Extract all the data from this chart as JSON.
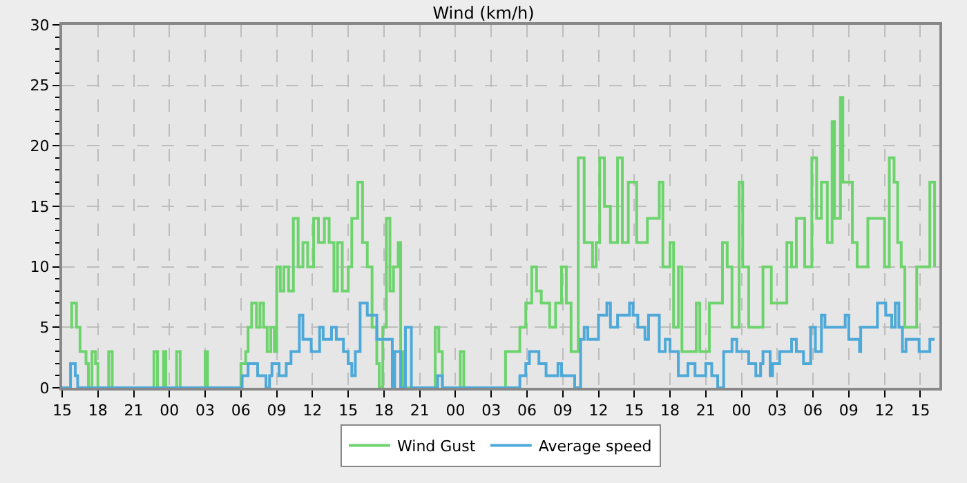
{
  "chart_data": {
    "type": "step",
    "title": "Wind (km/h)",
    "xlim": [
      15,
      88.6
    ],
    "ylim": [
      0,
      30
    ],
    "yticks": [
      0,
      5,
      10,
      15,
      20,
      25,
      30
    ],
    "xticks": [
      {
        "value": 15,
        "label": "15"
      },
      {
        "value": 18,
        "label": "18"
      },
      {
        "value": 21,
        "label": "21"
      },
      {
        "value": 24,
        "label": "00"
      },
      {
        "value": 27,
        "label": "03"
      },
      {
        "value": 30,
        "label": "06"
      },
      {
        "value": 33,
        "label": "09"
      },
      {
        "value": 36,
        "label": "12"
      },
      {
        "value": 39,
        "label": "15"
      },
      {
        "value": 42,
        "label": "18"
      },
      {
        "value": 45,
        "label": "21"
      },
      {
        "value": 48,
        "label": "00"
      },
      {
        "value": 51,
        "label": "03"
      },
      {
        "value": 54,
        "label": "06"
      },
      {
        "value": 57,
        "label": "09"
      },
      {
        "value": 60,
        "label": "12"
      },
      {
        "value": 63,
        "label": "15"
      },
      {
        "value": 66,
        "label": "18"
      },
      {
        "value": 69,
        "label": "21"
      },
      {
        "value": 72,
        "label": "00"
      },
      {
        "value": 75,
        "label": "03"
      },
      {
        "value": 78,
        "label": "06"
      },
      {
        "value": 81,
        "label": "09"
      },
      {
        "value": 84,
        "label": "12"
      },
      {
        "value": 87,
        "label": "15"
      }
    ],
    "grid": true,
    "legend": "bottom",
    "series": [
      {
        "name": "Wind Gust",
        "color": "#6dd46d",
        "x": [
          15.7,
          15.8,
          16.2,
          16.5,
          17.0,
          17.2,
          17.5,
          17.8,
          18.0,
          18.9,
          19.2,
          22.7,
          23.0,
          23.5,
          23.7,
          24.6,
          24.9,
          27.0,
          27.2,
          30.0,
          30.4,
          30.6,
          30.9,
          31.3,
          31.6,
          31.9,
          32.2,
          32.5,
          32.8,
          33.0,
          33.3,
          33.6,
          34.0,
          34.4,
          34.8,
          35.2,
          35.6,
          36.1,
          36.5,
          37.0,
          37.4,
          37.8,
          38.1,
          38.5,
          39.0,
          39.3,
          39.8,
          40.2,
          40.6,
          41.0,
          41.4,
          41.6,
          41.9,
          42.2,
          42.5,
          42.8,
          43.2,
          43.4,
          43.6,
          46.3,
          46.6,
          46.9,
          48.4,
          48.7,
          52.2,
          53.4,
          53.9,
          54.4,
          54.8,
          55.2,
          55.9,
          56.4,
          56.9,
          57.3,
          57.7,
          58.3,
          58.8,
          59.5,
          59.8,
          60.1,
          60.5,
          61.0,
          61.6,
          62.0,
          62.5,
          63.2,
          64.1,
          65.1,
          65.4,
          66.0,
          66.3,
          66.7,
          67.0,
          68.2,
          68.5,
          69.3,
          70.4,
          70.8,
          71.2,
          71.8,
          72.1,
          72.6,
          73.8,
          74.5,
          75.8,
          76.2,
          76.6,
          77.3,
          77.9,
          78.3,
          78.7,
          79.2,
          79.6,
          79.8,
          80.3,
          80.5,
          81.3,
          81.7,
          82.6,
          84.0,
          84.4,
          84.8,
          85.1,
          85.4,
          85.7,
          86.7,
          87.8,
          88.2
        ],
        "values": [
          5,
          7,
          5,
          3,
          2,
          0,
          3,
          2,
          0,
          3,
          0,
          3,
          0,
          3,
          0,
          3,
          0,
          3,
          0,
          2,
          3,
          5,
          7,
          5,
          7,
          5,
          3,
          5,
          3,
          10,
          8,
          10,
          8,
          14,
          10,
          12,
          10,
          14,
          12,
          14,
          12,
          8,
          12,
          8,
          10,
          14,
          17,
          12,
          10,
          5,
          2,
          0,
          5,
          14,
          8,
          10,
          12,
          3,
          0,
          5,
          3,
          0,
          3,
          0,
          3,
          5,
          7,
          10,
          8,
          7,
          5,
          7,
          10,
          7,
          3,
          19,
          12,
          10,
          12,
          19,
          15,
          12,
          19,
          12,
          17,
          12,
          14,
          17,
          10,
          12,
          5,
          10,
          3,
          7,
          3,
          7,
          12,
          10,
          5,
          17,
          10,
          5,
          10,
          7,
          12,
          10,
          14,
          10,
          19,
          14,
          17,
          12,
          22,
          14,
          24,
          17,
          12,
          10,
          14,
          10,
          19,
          17,
          12,
          10,
          5,
          10,
          17,
          10
        ]
      },
      {
        "name": "Average speed",
        "color": "#4ea9d9",
        "x": [
          15.0,
          15.7,
          16.1,
          16.3,
          30.1,
          30.6,
          31.4,
          32.1,
          32.4,
          32.6,
          33.2,
          33.8,
          34.2,
          34.9,
          35.2,
          35.9,
          36.6,
          36.9,
          37.6,
          38.0,
          38.6,
          39.0,
          39.3,
          39.6,
          40.0,
          40.6,
          41.4,
          42.7,
          42.9,
          43.4,
          43.8,
          44.3,
          46.5,
          46.9,
          53.4,
          53.9,
          54.2,
          55.0,
          55.6,
          56.6,
          56.9,
          58.0,
          58.5,
          58.8,
          59.1,
          60.0,
          60.7,
          61.0,
          61.6,
          62.6,
          62.9,
          63.3,
          63.9,
          64.2,
          65.1,
          65.6,
          66.0,
          66.7,
          67.5,
          68.1,
          69.0,
          69.5,
          70.0,
          70.5,
          71.2,
          71.6,
          72.6,
          73.2,
          73.6,
          73.8,
          74.4,
          74.6,
          75.2,
          76.2,
          76.6,
          77.2,
          77.8,
          78.2,
          78.7,
          79.0,
          80.7,
          81.0,
          81.9,
          82.0,
          83.4,
          84.1,
          84.6,
          84.9,
          85.2,
          85.5,
          85.8,
          86.9,
          87.8,
          88.2
        ],
        "values": [
          0,
          2,
          1,
          0,
          1,
          2,
          1,
          0,
          1,
          2,
          1,
          2,
          3,
          6,
          4,
          3,
          5,
          4,
          5,
          4,
          3,
          2,
          1,
          3,
          7,
          6,
          4,
          0,
          3,
          0,
          5,
          0,
          1,
          0,
          1,
          2,
          3,
          2,
          1,
          2,
          1,
          0,
          4,
          5,
          4,
          6,
          7,
          5,
          6,
          7,
          6,
          5,
          4,
          6,
          3,
          4,
          3,
          1,
          2,
          1,
          2,
          1,
          0,
          3,
          4,
          3,
          2,
          1,
          2,
          3,
          1,
          2,
          3,
          4,
          3,
          2,
          5,
          3,
          6,
          5,
          6,
          4,
          3,
          5,
          7,
          6,
          5,
          7,
          5,
          3,
          4,
          3,
          4,
          4
        ]
      }
    ]
  }
}
